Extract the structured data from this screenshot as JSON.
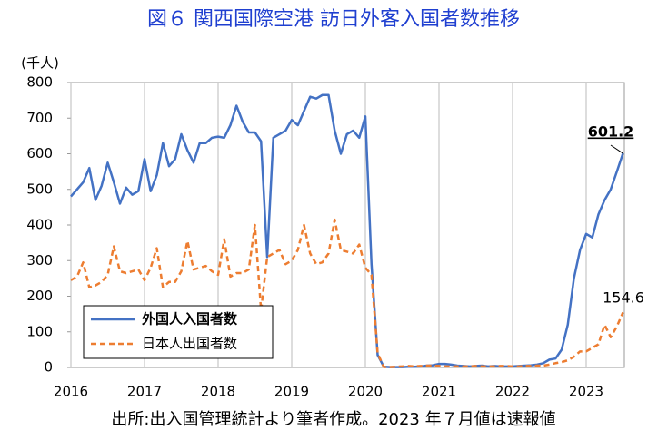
{
  "chart_data": {
    "type": "line",
    "title": "図６ 関西国際空港 訪日外客入国者数推移",
    "y_unit_label": "(千人)",
    "source_note": "出所:出入国管理統計より筆者作成。2023 年７月値は速報値",
    "categories": [
      "2016",
      null,
      null,
      null,
      null,
      null,
      null,
      null,
      null,
      null,
      null,
      null,
      "2017",
      null,
      null,
      null,
      null,
      null,
      null,
      null,
      null,
      null,
      null,
      null,
      "2018",
      null,
      null,
      null,
      null,
      null,
      null,
      null,
      null,
      null,
      null,
      null,
      "2019",
      null,
      null,
      null,
      null,
      null,
      null,
      null,
      null,
      null,
      null,
      null,
      "2020",
      null,
      null,
      null,
      null,
      null,
      null,
      null,
      null,
      null,
      null,
      null,
      "2021",
      null,
      null,
      null,
      null,
      null,
      null,
      null,
      null,
      null,
      null,
      null,
      "2022",
      null,
      null,
      null,
      null,
      null,
      null,
      null,
      null,
      null,
      null,
      null,
      "2023",
      null,
      null,
      null,
      null,
      null,
      null
    ],
    "series": [
      {
        "name": "外国人入国者数",
        "color": "#4472c4",
        "dashed": false,
        "values": [
          480,
          500,
          520,
          560,
          470,
          510,
          575,
          520,
          460,
          505,
          485,
          495,
          585,
          495,
          540,
          630,
          565,
          585,
          655,
          610,
          575,
          630,
          630,
          645,
          648,
          645,
          680,
          735,
          690,
          660,
          660,
          635,
          310,
          645,
          655,
          665,
          695,
          680,
          720,
          760,
          755,
          765,
          765,
          665,
          600,
          655,
          665,
          645,
          705,
          290,
          35,
          2,
          1,
          1,
          1,
          2,
          2,
          3,
          5,
          6,
          10,
          10,
          8,
          5,
          4,
          3,
          4,
          5,
          3,
          4,
          3,
          3,
          3,
          4,
          5,
          6,
          8,
          12,
          22,
          25,
          50,
          120,
          250,
          330,
          375,
          365,
          430,
          470,
          500,
          550,
          601.2
        ]
      },
      {
        "name": "日本人出国者数",
        "color": "#ed7d31",
        "dashed": true,
        "values": [
          245,
          255,
          295,
          225,
          230,
          240,
          260,
          340,
          270,
          265,
          270,
          275,
          245,
          280,
          335,
          225,
          240,
          240,
          270,
          355,
          275,
          280,
          285,
          270,
          260,
          360,
          255,
          265,
          265,
          275,
          400,
          160,
          310,
          320,
          330,
          290,
          300,
          330,
          400,
          320,
          290,
          295,
          320,
          415,
          330,
          325,
          320,
          345,
          280,
          260,
          40,
          1,
          1,
          2,
          3,
          4,
          3,
          4,
          5,
          5,
          4,
          3,
          3,
          3,
          3,
          3,
          4,
          3,
          3,
          3,
          4,
          4,
          3,
          3,
          4,
          4,
          5,
          5,
          8,
          12,
          15,
          20,
          30,
          45,
          45,
          55,
          65,
          120,
          85,
          115,
          154.6
        ]
      }
    ],
    "ylim": [
      0,
      800
    ],
    "yticks": [
      0,
      100,
      200,
      300,
      400,
      500,
      600,
      700,
      800
    ],
    "grid": "x",
    "legend": "lower left"
  }
}
